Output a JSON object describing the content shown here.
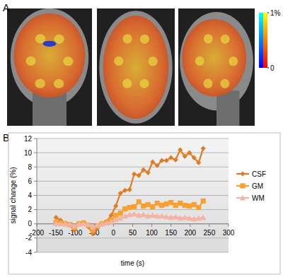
{
  "figure": {
    "panels": [
      {
        "label": "A",
        "colorbar": {
          "range": [
            0,
            1
          ],
          "ticks": [
            0,
            {
              "value": 1,
              "label": "1%"
            }
          ]
        }
      },
      {
        "label": "B"
      }
    ]
  },
  "chart_data": {
    "type": "line",
    "xlabel": "time (s)",
    "ylabel": "signal change (%)",
    "x": [
      -150,
      -138,
      -126,
      -114,
      -102,
      -90,
      -78,
      -66,
      -54,
      -42,
      -30,
      -18,
      -6,
      6,
      18,
      30,
      42,
      54,
      66,
      78,
      90,
      102,
      114,
      126,
      138,
      150,
      162,
      174,
      186,
      198,
      210,
      222,
      234
    ],
    "series": [
      {
        "name": "CSF",
        "color": "#e07c24",
        "marker": "diamond",
        "values": [
          0.9,
          0.5,
          0.1,
          -0.2,
          -0.9,
          0.1,
          0.2,
          -0.4,
          -1.4,
          -0.6,
          0.1,
          0.3,
          1.2,
          2.5,
          4.3,
          4.7,
          4.8,
          7.0,
          6.8,
          7.6,
          7.2,
          8.7,
          8.2,
          8.9,
          8.9,
          9.3,
          9.0,
          10.4,
          9.5,
          10.0,
          9.3,
          8.6,
          10.6
        ]
      },
      {
        "name": "GM",
        "color": "#f9a030",
        "marker": "square",
        "values": [
          0.2,
          0.1,
          0,
          -0.1,
          -0.5,
          0,
          0.1,
          -0.2,
          -0.9,
          -0.3,
          0,
          0.2,
          0.5,
          1.2,
          1.5,
          2.1,
          2.3,
          2.4,
          3.1,
          2.5,
          2.7,
          2.4,
          2.9,
          2.6,
          2.8,
          3.0,
          2.6,
          2.9,
          2.6,
          2.5,
          2.7,
          2.3,
          3.2
        ]
      },
      {
        "name": "WM",
        "color": "#f2b4a4",
        "marker": "triangle",
        "values": [
          0.1,
          0,
          0,
          -0.1,
          -0.3,
          0,
          0,
          -0.1,
          -0.4,
          -0.2,
          0,
          0.1,
          0.3,
          0.6,
          0.8,
          1.1,
          1.3,
          1.4,
          1.2,
          1.3,
          1.1,
          1.2,
          1.1,
          1.1,
          1.0,
          0.9,
          1.0,
          0.8,
          0.9,
          0.8,
          0.7,
          0.8,
          0.9
        ]
      }
    ],
    "xlim": [
      -200,
      300
    ],
    "xticks": [
      -200,
      -150,
      -100,
      -50,
      0,
      50,
      100,
      150,
      200,
      250,
      300
    ],
    "ylim": [
      -4,
      12
    ],
    "yticks": [
      -4,
      -2,
      0,
      2,
      4,
      6,
      8,
      10,
      12
    ],
    "grid": true,
    "legend": "right"
  }
}
